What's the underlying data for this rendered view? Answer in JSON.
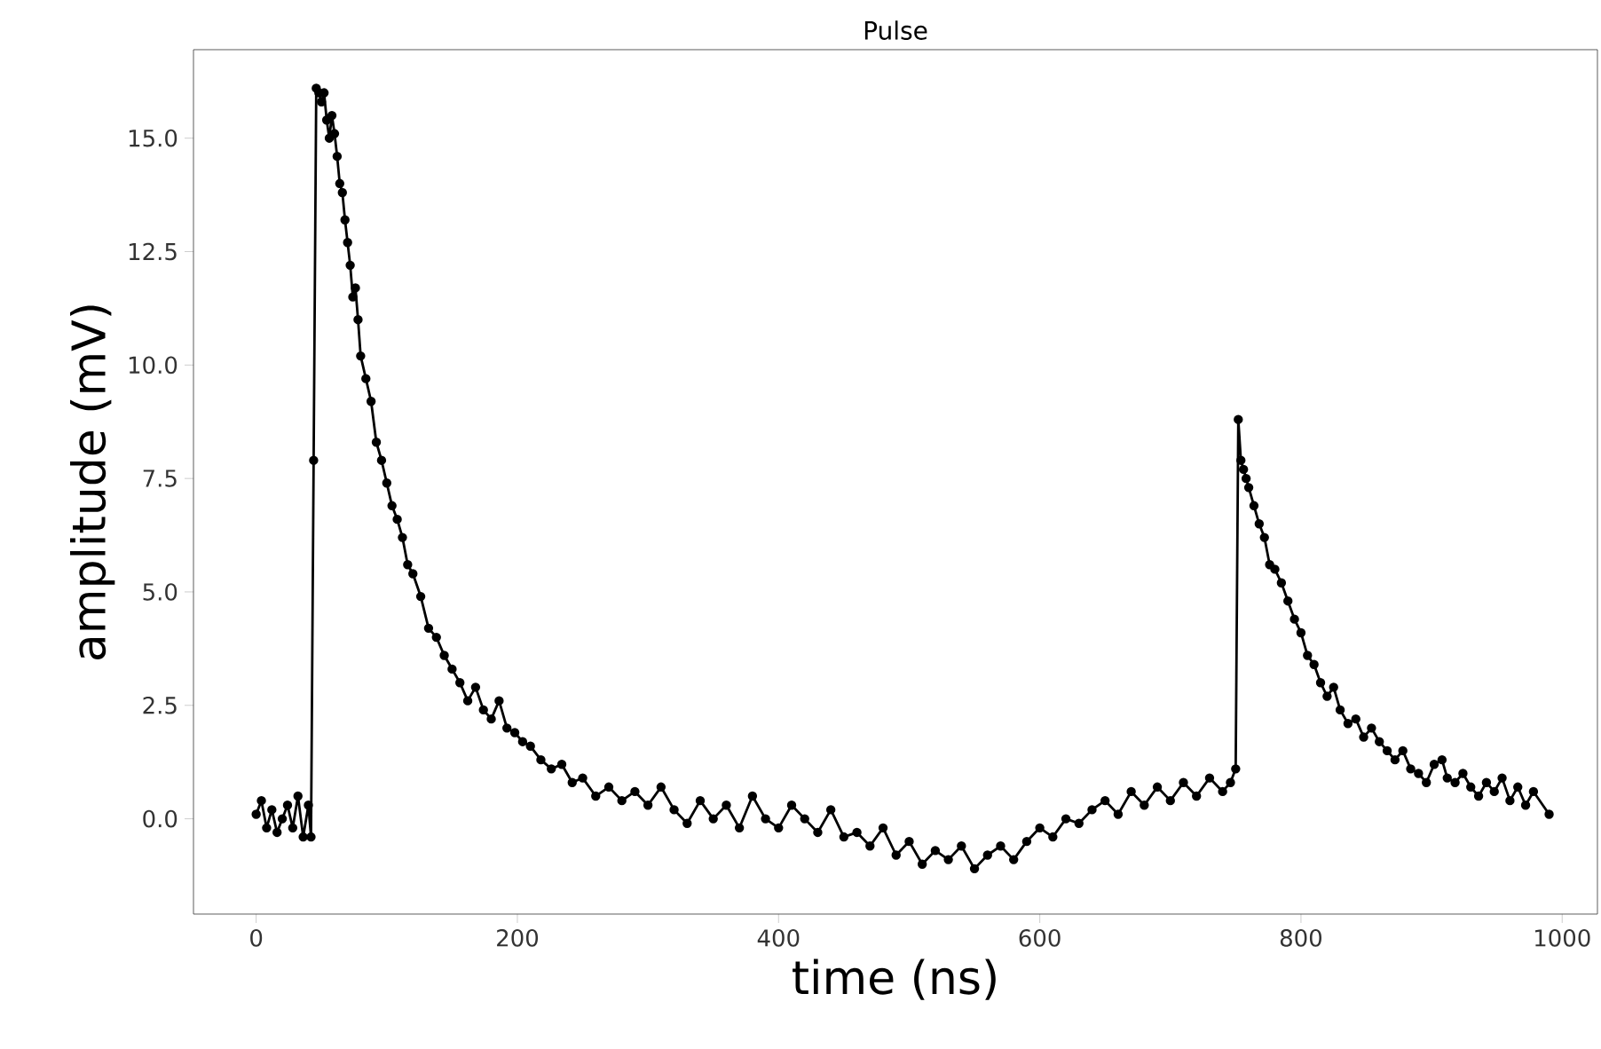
{
  "chart_data": {
    "type": "line",
    "title": "Pulse",
    "xlabel": "time (ns)",
    "ylabel": "amplitude (mV)",
    "xlim": [
      -48,
      1027
    ],
    "ylim": [
      -2.1,
      16.95
    ],
    "xticks": [
      0,
      200,
      400,
      600,
      800,
      1000
    ],
    "yticks": [
      {
        "value": 0.0,
        "label": "0.0"
      },
      {
        "value": 2.5,
        "label": "2.5"
      },
      {
        "value": 5.0,
        "label": "5.0"
      },
      {
        "value": 7.5,
        "label": "7.5"
      },
      {
        "value": 10.0,
        "label": "10.0"
      },
      {
        "value": 12.5,
        "label": "12.5"
      },
      {
        "value": 15.0,
        "label": "15.0"
      }
    ],
    "marker": "circle",
    "line_style": "solid",
    "series": [
      {
        "color": "#000000",
        "x": [
          0,
          4,
          8,
          12,
          16,
          20,
          24,
          28,
          32,
          36,
          40,
          42,
          44,
          46,
          48,
          50,
          52,
          54,
          56,
          58,
          60,
          62,
          64,
          66,
          68,
          70,
          72,
          74,
          76,
          78,
          80,
          84,
          88,
          92,
          96,
          100,
          104,
          108,
          112,
          116,
          120,
          126,
          132,
          138,
          144,
          150,
          156,
          162,
          168,
          174,
          180,
          186,
          192,
          198,
          204,
          210,
          218,
          226,
          234,
          242,
          250,
          260,
          270,
          280,
          290,
          300,
          310,
          320,
          330,
          340,
          350,
          360,
          370,
          380,
          390,
          400,
          410,
          420,
          430,
          440,
          450,
          460,
          470,
          480,
          490,
          500,
          510,
          520,
          530,
          540,
          550,
          560,
          570,
          580,
          590,
          600,
          610,
          620,
          630,
          640,
          650,
          660,
          670,
          680,
          690,
          700,
          710,
          720,
          730,
          740,
          746,
          750,
          752,
          754,
          756,
          758,
          760,
          764,
          768,
          772,
          776,
          780,
          785,
          790,
          795,
          800,
          805,
          810,
          815,
          820,
          825,
          830,
          836,
          842,
          848,
          854,
          860,
          866,
          872,
          878,
          884,
          890,
          896,
          902,
          908,
          912,
          918,
          924,
          930,
          936,
          942,
          948,
          954,
          960,
          966,
          972,
          978,
          990
        ],
        "values": [
          0.1,
          0.4,
          -0.2,
          0.2,
          -0.3,
          0.0,
          0.3,
          -0.2,
          0.5,
          -0.4,
          0.3,
          -0.4,
          7.9,
          16.1,
          16.0,
          15.8,
          16.0,
          15.4,
          15.0,
          15.5,
          15.1,
          14.6,
          14.0,
          13.8,
          13.2,
          12.7,
          12.2,
          11.5,
          11.7,
          11.0,
          10.2,
          9.7,
          9.2,
          8.3,
          7.9,
          7.4,
          6.9,
          6.6,
          6.2,
          5.6,
          5.4,
          4.9,
          4.2,
          4.0,
          3.6,
          3.3,
          3.0,
          2.6,
          2.9,
          2.4,
          2.2,
          2.6,
          2.0,
          1.9,
          1.7,
          1.6,
          1.3,
          1.1,
          1.2,
          0.8,
          0.9,
          0.5,
          0.7,
          0.4,
          0.6,
          0.3,
          0.7,
          0.2,
          -0.1,
          0.4,
          0.0,
          0.3,
          -0.2,
          0.5,
          0.0,
          -0.2,
          0.3,
          0.0,
          -0.3,
          0.2,
          -0.4,
          -0.3,
          -0.6,
          -0.2,
          -0.8,
          -0.5,
          -1.0,
          -0.7,
          -0.9,
          -0.6,
          -1.1,
          -0.8,
          -0.6,
          -0.9,
          -0.5,
          -0.2,
          -0.4,
          0.0,
          -0.1,
          0.2,
          0.4,
          0.1,
          0.6,
          0.3,
          0.7,
          0.4,
          0.8,
          0.5,
          0.9,
          0.6,
          0.8,
          1.1,
          8.8,
          7.9,
          7.7,
          7.5,
          7.3,
          6.9,
          6.5,
          6.2,
          5.6,
          5.5,
          5.2,
          4.8,
          4.4,
          4.1,
          3.6,
          3.4,
          3.0,
          2.7,
          2.9,
          2.4,
          2.1,
          2.2,
          1.8,
          2.0,
          1.7,
          1.5,
          1.3,
          1.5,
          1.1,
          1.0,
          0.8,
          1.2,
          1.3,
          0.9,
          0.8,
          1.0,
          0.7,
          0.5,
          0.8,
          0.6,
          0.9,
          0.4,
          0.7,
          0.3,
          0.6,
          0.1
        ]
      }
    ]
  }
}
